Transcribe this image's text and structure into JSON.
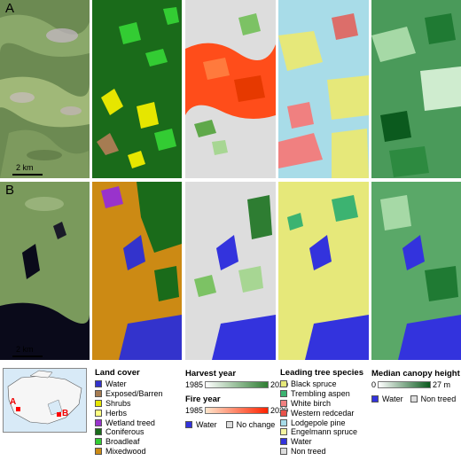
{
  "row_labels": {
    "a": "A",
    "b": "B"
  },
  "scale_label": "2 km",
  "inset_sites": {
    "a": "A",
    "b": "B"
  },
  "land_cover": {
    "title": "Land cover",
    "items": [
      {
        "label": "Water",
        "color": "#3333cc"
      },
      {
        "label": "Exposed/Barren",
        "color": "#a67c52"
      },
      {
        "label": "Shrubs",
        "color": "#e6e600"
      },
      {
        "label": "Herbs",
        "color": "#ffff80"
      },
      {
        "label": "Wetland treed",
        "color": "#9933cc"
      },
      {
        "label": "Coniferous",
        "color": "#1a6b1a"
      },
      {
        "label": "Broadleaf",
        "color": "#33cc33"
      },
      {
        "label": "Mixedwood",
        "color": "#cc8a14"
      }
    ]
  },
  "harvest": {
    "title": "Harvest year",
    "min": "1985",
    "max": "2020",
    "color_from": "#ffffff",
    "color_to": "#2e7d32"
  },
  "fire": {
    "title": "Fire year",
    "min": "1985",
    "max": "2020",
    "color_from": "#ffe6cc",
    "color_to": "#ff2200"
  },
  "change_extra": [
    {
      "label": "Water",
      "color": "#3333dd"
    },
    {
      "label": "No change",
      "color": "#dddddd"
    }
  ],
  "species": {
    "title": "Leading tree species",
    "items": [
      {
        "label": "Black spruce",
        "color": "#e6e87a"
      },
      {
        "label": "Trembling aspen",
        "color": "#3cb371"
      },
      {
        "label": "White birch",
        "color": "#f08080"
      },
      {
        "label": "Western redcedar",
        "color": "#e8524a"
      },
      {
        "label": "Lodgepole pine",
        "color": "#a8dce8"
      },
      {
        "label": "Engelmann spruce",
        "color": "#f5f5a0"
      },
      {
        "label": "Water",
        "color": "#3333dd"
      },
      {
        "label": "Non treed",
        "color": "#dddddd"
      }
    ]
  },
  "canopy": {
    "title": "Median canopy height",
    "min": "0",
    "max": "27 m",
    "color_from": "#ffffff",
    "color_to": "#0b5a1e",
    "extra": [
      {
        "label": "Water",
        "color": "#3333dd"
      },
      {
        "label": "Non treed",
        "color": "#dddddd"
      }
    ]
  }
}
